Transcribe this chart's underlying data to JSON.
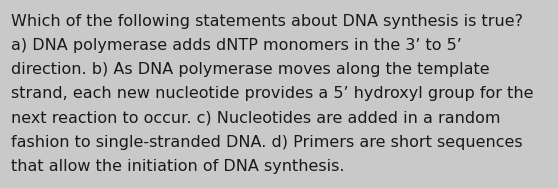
{
  "lines": [
    "Which of the following statements about DNA synthesis is true?",
    "a) DNA polymerase adds dNTP monomers in the 3’ to 5’",
    "direction. b) As DNA polymerase moves along the template",
    "strand, each new nucleotide provides a 5’ hydroxyl group for the",
    "next reaction to occur. c) Nucleotides are added in a random",
    "fashion to single-stranded DNA. d) Primers are short sequences",
    "that allow the initiation of DNA synthesis."
  ],
  "background_color": "#c9c9c9",
  "text_color": "#1a1a1a",
  "font_size": 11.5,
  "fig_width": 5.58,
  "fig_height": 1.88,
  "dpi": 100
}
